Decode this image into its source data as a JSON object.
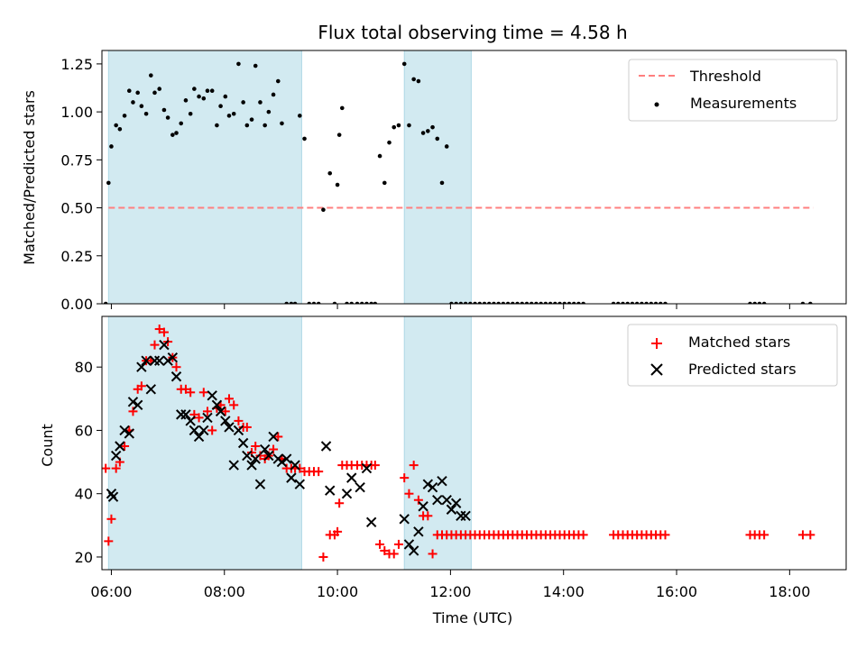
{
  "chart_data": [
    {
      "type": "scatter",
      "title": "Flux total observing time = 4.58 h",
      "xlabel": "",
      "ylabel": "Matched/Predicted stars",
      "xlim": [
        "05:50",
        "19:00"
      ],
      "ylim": [
        0,
        1.32
      ],
      "x_ticks": [
        "06:00",
        "08:00",
        "10:00",
        "12:00",
        "14:00",
        "16:00",
        "18:00"
      ],
      "y_ticks": [
        "0.00",
        "0.25",
        "0.50",
        "0.75",
        "1.00",
        "1.25"
      ],
      "y_tick_values": [
        0,
        0.25,
        0.5,
        0.75,
        1.0,
        1.25
      ],
      "shaded_intervals": [
        [
          "05:57",
          "09:22"
        ],
        [
          "11:11",
          "12:22"
        ]
      ],
      "shade_color": "#add8e6",
      "threshold": {
        "name": "Threshold",
        "value": 0.5,
        "x": [
          "05:57",
          "18:25"
        ],
        "color": "#ff7f7f"
      },
      "series": [
        {
          "name": "Measurements",
          "color": "#000000",
          "x": [
            "05:54",
            "05:57",
            "06:00",
            "06:05",
            "06:09",
            "06:14",
            "06:19",
            "06:23",
            "06:28",
            "06:32",
            "06:37",
            "06:42",
            "06:46",
            "06:51",
            "06:56",
            "07:00",
            "07:05",
            "07:09",
            "07:14",
            "07:19",
            "07:24",
            "07:28",
            "07:33",
            "07:38",
            "07:42",
            "07:47",
            "07:52",
            "07:56",
            "08:01",
            "08:05",
            "08:10",
            "08:15",
            "08:20",
            "08:24",
            "08:29",
            "08:33",
            "08:38",
            "08:43",
            "08:47",
            "08:52",
            "08:57",
            "09:01",
            "09:06",
            "09:11",
            "09:15",
            "09:20",
            "09:25",
            "09:30",
            "09:35",
            "09:40",
            "09:45",
            "09:52",
            "09:57",
            "10:00",
            "10:02",
            "10:05",
            "10:10",
            "10:15",
            "10:21",
            "10:26",
            "10:31",
            "10:36",
            "10:40",
            "10:45",
            "10:50",
            "10:55",
            "11:00",
            "11:05",
            "11:11",
            "11:16",
            "11:21",
            "11:26",
            "11:31",
            "11:36",
            "11:41",
            "11:46",
            "11:51",
            "11:56",
            "12:01",
            "12:06",
            "12:11",
            "12:16",
            "12:21"
          ],
          "y": [
            0.0,
            0.63,
            0.82,
            0.93,
            0.91,
            0.98,
            1.11,
            1.05,
            1.1,
            1.03,
            0.99,
            1.19,
            1.1,
            1.12,
            1.01,
            0.97,
            0.88,
            0.89,
            0.94,
            1.06,
            0.99,
            1.12,
            1.08,
            1.07,
            1.11,
            1.11,
            0.93,
            1.03,
            1.08,
            0.98,
            0.99,
            1.25,
            1.05,
            0.93,
            0.96,
            1.24,
            1.05,
            0.93,
            1.0,
            1.09,
            1.16,
            0.94,
            0.0,
            0.0,
            0.0,
            0.98,
            0.86,
            0.0,
            0.0,
            0.0,
            0.49,
            0.68,
            0.0,
            0.62,
            0.88,
            1.02,
            0.0,
            0.0,
            0.0,
            0.0,
            0.0,
            0.0,
            0.0,
            0.77,
            0.63,
            0.84,
            0.92,
            0.93,
            1.25,
            0.93,
            1.17,
            1.16,
            0.89,
            0.9,
            0.92,
            0.86,
            0.63,
            0.82,
            0.0,
            0.0,
            0.0,
            0.0,
            0.0
          ]
        },
        {
          "name": "",
          "color": "#000000",
          "x": [
            "12:26",
            "12:31",
            "12:36",
            "12:41",
            "12:46",
            "12:51",
            "12:56",
            "13:01",
            "13:06",
            "13:11",
            "13:16",
            "13:21",
            "13:26",
            "13:31",
            "13:36",
            "13:41",
            "13:46",
            "13:51",
            "13:56",
            "14:01",
            "14:06",
            "14:11",
            "14:16",
            "14:21",
            "14:53",
            "14:58",
            "15:03",
            "15:08",
            "15:13",
            "15:18",
            "15:23",
            "15:28",
            "15:33",
            "15:38",
            "15:43",
            "15:48",
            "17:18",
            "17:23",
            "17:28",
            "17:33",
            "18:14",
            "18:22"
          ],
          "y": [
            0,
            0,
            0,
            0,
            0,
            0,
            0,
            0,
            0,
            0,
            0,
            0,
            0,
            0,
            0,
            0,
            0,
            0,
            0,
            0,
            0,
            0,
            0,
            0,
            0,
            0,
            0,
            0,
            0,
            0,
            0,
            0,
            0,
            0,
            0,
            0,
            0,
            0,
            0,
            0,
            0,
            0
          ]
        }
      ],
      "legend": {
        "position": "top-right",
        "entries": [
          "Threshold",
          "Measurements"
        ]
      }
    },
    {
      "type": "scatter",
      "title": "",
      "xlabel": "Time (UTC)",
      "ylabel": "Count",
      "xlim": [
        "05:50",
        "19:00"
      ],
      "ylim": [
        16,
        96
      ],
      "x_ticks": [
        "06:00",
        "08:00",
        "10:00",
        "12:00",
        "14:00",
        "16:00",
        "18:00"
      ],
      "y_ticks": [
        "20",
        "40",
        "60",
        "80"
      ],
      "y_tick_values": [
        20,
        40,
        60,
        80
      ],
      "shaded_intervals": [
        [
          "05:57",
          "09:22"
        ],
        [
          "11:11",
          "12:22"
        ]
      ],
      "shade_color": "#add8e6",
      "series": [
        {
          "name": "Matched stars",
          "marker": "plus",
          "color": "#ff0000",
          "x": [
            "05:54",
            "05:57",
            "06:00",
            "06:05",
            "06:09",
            "06:14",
            "06:19",
            "06:23",
            "06:28",
            "06:32",
            "06:37",
            "06:42",
            "06:46",
            "06:51",
            "06:56",
            "07:00",
            "07:05",
            "07:09",
            "07:14",
            "07:19",
            "07:24",
            "07:28",
            "07:33",
            "07:38",
            "07:42",
            "07:47",
            "07:52",
            "07:56",
            "08:01",
            "08:05",
            "08:10",
            "08:15",
            "08:20",
            "08:24",
            "08:29",
            "08:33",
            "08:38",
            "08:43",
            "08:47",
            "08:52",
            "08:57",
            "09:01",
            "09:06",
            "09:11",
            "09:15",
            "09:20",
            "09:25",
            "09:30",
            "09:35",
            "09:40",
            "09:45",
            "09:52",
            "09:57",
            "10:00",
            "10:02",
            "10:05",
            "10:10",
            "10:15",
            "10:21",
            "10:26",
            "10:31",
            "10:36",
            "10:40",
            "10:45",
            "10:50",
            "10:55",
            "11:00",
            "11:05",
            "11:11",
            "11:16",
            "11:21",
            "11:26",
            "11:31",
            "11:36",
            "11:41",
            "11:46",
            "11:51",
            "11:56",
            "12:01",
            "12:06",
            "12:11",
            "12:16",
            "12:21",
            "12:26",
            "12:31",
            "12:36",
            "12:41",
            "12:46",
            "12:51",
            "12:56",
            "13:01",
            "13:06",
            "13:11",
            "13:16",
            "13:21",
            "13:26",
            "13:31",
            "13:36",
            "13:41",
            "13:46",
            "13:51",
            "13:56",
            "14:01",
            "14:06",
            "14:11",
            "14:16",
            "14:21",
            "14:53",
            "14:58",
            "15:03",
            "15:08",
            "15:13",
            "15:18",
            "15:23",
            "15:28",
            "15:33",
            "15:38",
            "15:43",
            "15:48",
            "17:18",
            "17:23",
            "17:28",
            "17:33",
            "18:14",
            "18:22"
          ],
          "y": [
            48,
            25,
            32,
            48,
            50,
            55,
            60,
            66,
            73,
            74,
            82,
            82,
            87,
            92,
            91,
            88,
            83,
            80,
            73,
            73,
            72,
            65,
            64,
            72,
            66,
            60,
            67,
            68,
            66,
            70,
            68,
            63,
            61,
            61,
            53,
            55,
            52,
            51,
            52,
            54,
            58,
            51,
            48,
            48,
            48,
            48,
            47,
            47,
            47,
            47,
            20,
            27,
            27,
            28,
            37,
            49,
            49,
            49,
            49,
            49,
            49,
            49,
            49,
            24,
            22,
            21,
            21,
            24,
            45,
            40,
            49,
            38,
            33,
            33,
            21,
            27,
            27,
            27,
            27,
            27,
            27,
            27,
            27,
            27,
            27,
            27,
            27,
            27,
            27,
            27,
            27,
            27,
            27,
            27,
            27,
            27,
            27,
            27,
            27,
            27,
            27,
            27,
            27,
            27,
            27,
            27,
            27,
            27,
            27,
            27,
            27,
            27,
            27,
            27,
            27,
            27,
            27,
            27,
            27,
            27,
            27,
            27,
            27,
            27,
            27
          ]
        },
        {
          "name": "Predicted stars",
          "marker": "x",
          "color": "#000000",
          "x": [
            "06:00",
            "06:02",
            "06:05",
            "06:09",
            "06:14",
            "06:19",
            "06:23",
            "06:28",
            "06:32",
            "06:37",
            "06:42",
            "06:46",
            "06:51",
            "06:56",
            "07:00",
            "07:05",
            "07:09",
            "07:14",
            "07:19",
            "07:24",
            "07:28",
            "07:33",
            "07:38",
            "07:42",
            "07:47",
            "07:52",
            "07:56",
            "08:01",
            "08:05",
            "08:10",
            "08:15",
            "08:20",
            "08:24",
            "08:29",
            "08:33",
            "08:38",
            "08:43",
            "08:47",
            "08:52",
            "08:57",
            "09:01",
            "09:06",
            "09:11",
            "09:15",
            "09:20",
            "09:48",
            "09:52",
            "10:10",
            "10:15",
            "10:24",
            "10:31",
            "10:36",
            "11:11",
            "11:16",
            "11:21",
            "11:26",
            "11:31",
            "11:36",
            "11:41",
            "11:46",
            "11:51",
            "11:56",
            "12:01",
            "12:06",
            "12:11",
            "12:16"
          ],
          "y": [
            40,
            39,
            52,
            55,
            60,
            59,
            69,
            68,
            80,
            82,
            73,
            82,
            82,
            87,
            82,
            83,
            77,
            65,
            65,
            63,
            60,
            58,
            60,
            64,
            71,
            68,
            66,
            63,
            61,
            49,
            60,
            56,
            52,
            49,
            51,
            43,
            54,
            52,
            58,
            51,
            50,
            51,
            45,
            49,
            43,
            55,
            41,
            40,
            45,
            42,
            48,
            31,
            32,
            24,
            22,
            28,
            36,
            43,
            42,
            38,
            44,
            38,
            35,
            37,
            33,
            33
          ]
        }
      ],
      "legend": {
        "position": "top-right",
        "entries": [
          "Matched stars",
          "Predicted stars"
        ]
      }
    }
  ]
}
